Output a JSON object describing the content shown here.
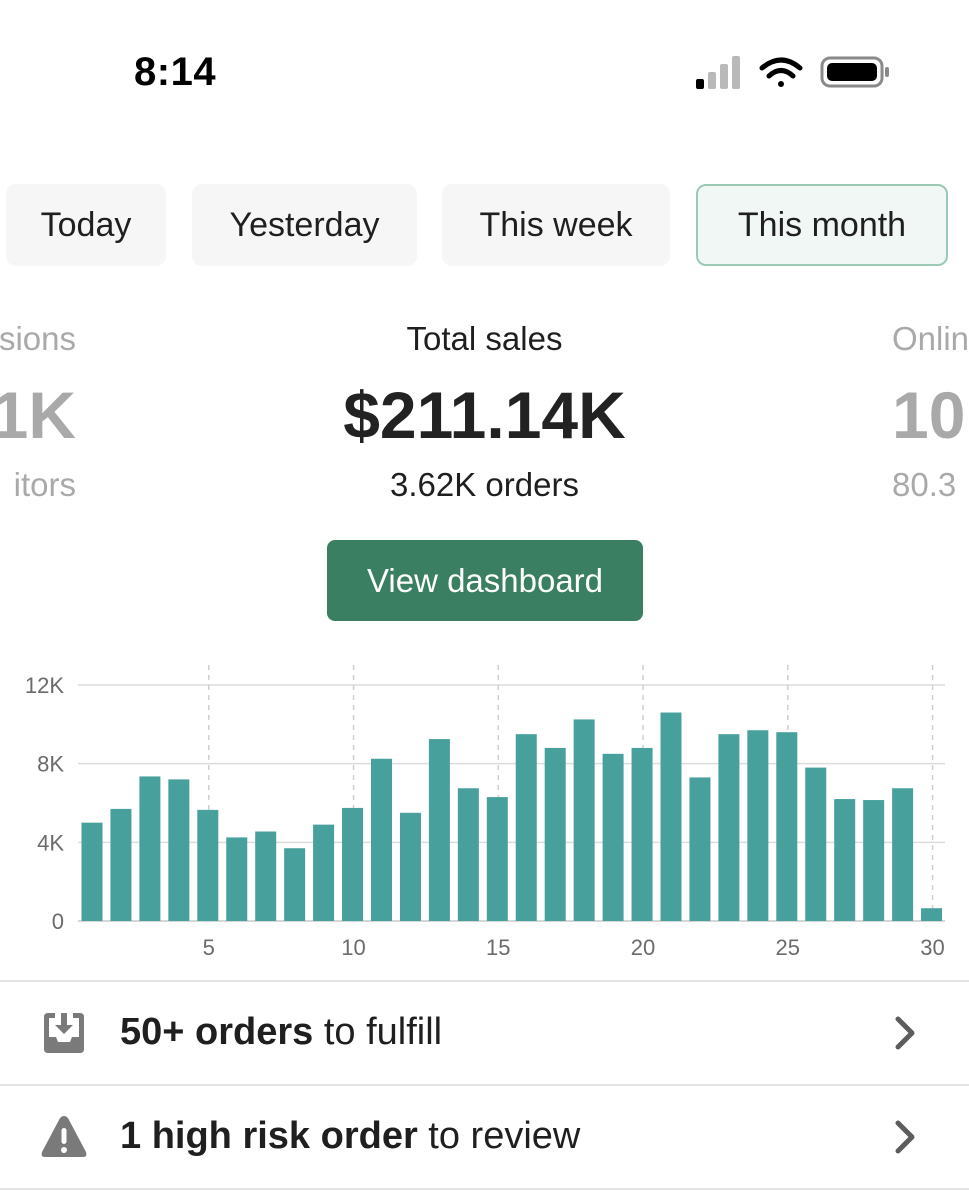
{
  "status_bar": {
    "time": "8:14"
  },
  "tabs": [
    {
      "label": "Today",
      "active": false
    },
    {
      "label": "Yesterday",
      "active": false
    },
    {
      "label": "This week",
      "active": false
    },
    {
      "label": "This month",
      "active": true
    }
  ],
  "metrics": {
    "left": {
      "label": "sions",
      "value": "1K",
      "sub": "itors"
    },
    "center": {
      "label": "Total sales",
      "value": "$211.14K",
      "sub": "3.62K orders"
    },
    "right": {
      "label": "Onlin",
      "value": "10",
      "sub": "80.3"
    }
  },
  "dashboard_button": {
    "label": "View dashboard"
  },
  "chart_data": {
    "type": "bar",
    "x": [
      1,
      2,
      3,
      4,
      5,
      6,
      7,
      8,
      9,
      10,
      11,
      12,
      13,
      14,
      15,
      16,
      17,
      18,
      19,
      20,
      21,
      22,
      23,
      24,
      25,
      26,
      27,
      28,
      29,
      30
    ],
    "values": [
      5000,
      5700,
      7350,
      7200,
      5650,
      4250,
      4550,
      3700,
      4900,
      5750,
      8250,
      5500,
      9250,
      6750,
      6300,
      9500,
      8800,
      10250,
      8500,
      8800,
      10600,
      7300,
      9500,
      9700,
      9600,
      7800,
      6200,
      6150,
      6750,
      650
    ],
    "xticks": [
      "5",
      "10",
      "15",
      "20",
      "25",
      "30"
    ],
    "yticks": [
      "0",
      "4K",
      "8K",
      "12K"
    ],
    "ylim": [
      0,
      12000
    ],
    "bar_color": "#47a09b",
    "grid": true
  },
  "tasks": [
    {
      "icon": "inbox-download-icon",
      "bold": "50+ orders",
      "rest": " to fulfill"
    },
    {
      "icon": "warning-icon",
      "bold": "1 high risk order",
      "rest": " to review"
    }
  ]
}
